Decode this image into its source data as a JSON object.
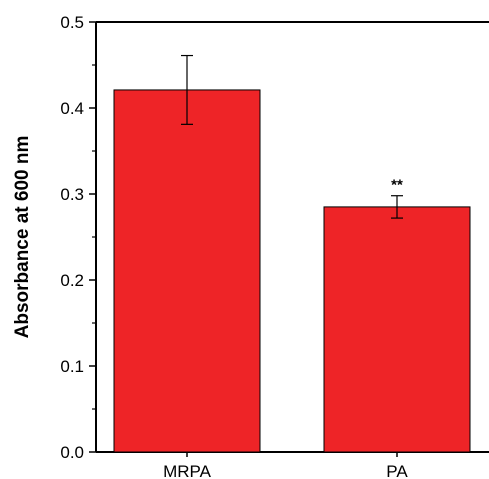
{
  "chart_data": {
    "type": "bar",
    "categories": [
      "MRPA",
      "PA"
    ],
    "values": [
      0.421,
      0.285
    ],
    "errors": [
      0.04,
      0.013
    ],
    "annotations": [
      "",
      "**"
    ],
    "title": "",
    "xlabel": "",
    "ylabel": "Absorbance at 600 nm",
    "ylim": [
      0.0,
      0.5
    ],
    "yticks": [
      "0.0",
      "0.1",
      "0.2",
      "0.3",
      "0.4",
      "0.5"
    ],
    "grid": false,
    "bar_color": "#ee2427",
    "bar_edge_color": "#000000"
  }
}
